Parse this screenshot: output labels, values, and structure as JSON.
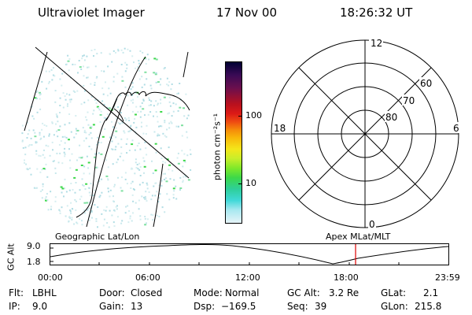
{
  "header": {
    "instrument": "Ultraviolet Imager",
    "date": "17 Nov 00",
    "time": "18:26:32 UT"
  },
  "left_panel": {
    "label": "Geographic Lat/Lon"
  },
  "colorbar": {
    "units": "photon cm⁻²s⁻¹",
    "tick_100": "100",
    "tick_10": "10",
    "colors": [
      "#000033",
      "#3a0a55",
      "#6a0f4e",
      "#8e1030",
      "#b8101e",
      "#dc1a16",
      "#ee4a12",
      "#f58a0a",
      "#f8b70a",
      "#f4e61a",
      "#c8ee2a",
      "#7ee82a",
      "#3cd84a",
      "#2ecf9a",
      "#40d8d8",
      "#a8e8f0",
      "#e6f4f8"
    ]
  },
  "polar": {
    "label": "Apex MLat/MLT",
    "mlt_12": "12",
    "mlt_18": "18",
    "mlt_6": "6",
    "mlt_0": "0",
    "lat_60": "60",
    "lat_70": "70",
    "lat_80": "80"
  },
  "altitude_plot": {
    "ylabel": "GC Alt",
    "y_top": "9.0",
    "y_bottom": "1.8",
    "x_labels": [
      "00:00",
      "06:00",
      "12:00",
      "18:00",
      "23:59"
    ],
    "marker_color": "#dd0000"
  },
  "info": {
    "flt_label": "Flt:",
    "flt_value": "LBHL",
    "ip_label": "IP:",
    "ip_value": "9.0",
    "door_label": "Door:",
    "door_value": "Closed",
    "gain_label": "Gain:",
    "gain_value": "13",
    "mode_label": "Mode:",
    "mode_value": "Normal",
    "dsp_label": "Dsp:",
    "dsp_value": "−169.5",
    "gcalt_label": "GC Alt:",
    "gcalt_value": "3.2 Re",
    "seq_label": "Seq:",
    "seq_value": "39",
    "glat_label": "GLat:",
    "glat_value": "2.1",
    "glon_label": "GLon:",
    "glon_value": "215.8"
  }
}
